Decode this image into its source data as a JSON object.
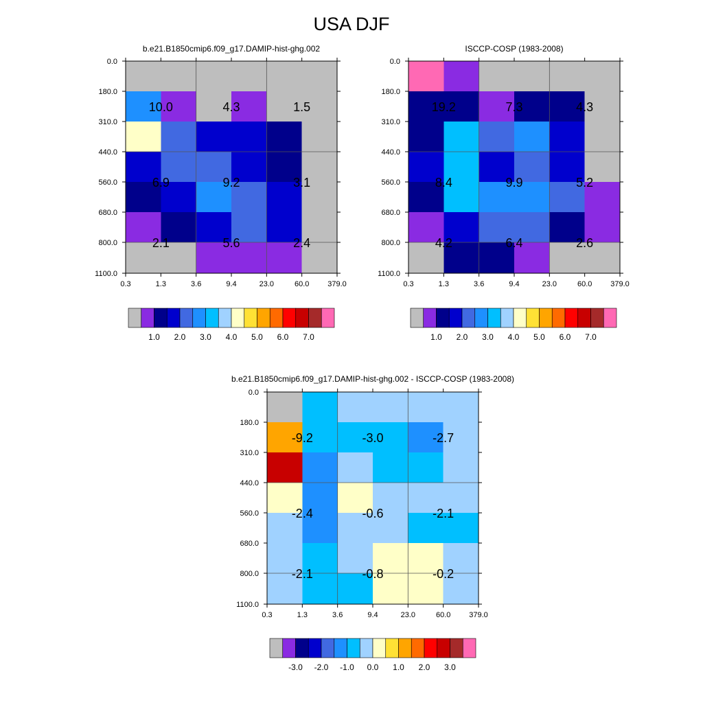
{
  "title": "USA DJF",
  "chart_data": [
    {
      "type": "heatmap",
      "title": "b.e21.B1850cmip6.f09_g17.DAMIP-hist-ghg.002",
      "x_tick_labels": [
        "0.3",
        "1.3",
        "3.6",
        "9.4",
        "23.0",
        "60.0",
        "379.0"
      ],
      "y_tick_labels": [
        "0.0",
        "180.0",
        "310.0",
        "440.0",
        "560.0",
        "680.0",
        "800.0",
        "1100.0"
      ],
      "cell_colors": [
        [
          "#bebebe",
          "#bebebe",
          "#bebebe",
          "#bebebe",
          "#bebebe",
          "#bebebe"
        ],
        [
          "#1e90ff",
          "#8a2be2",
          "#bebebe",
          "#8a2be2",
          "#bebebe",
          "#bebebe"
        ],
        [
          "#ffffc8",
          "#4169e1",
          "#0000cd",
          "#0000cd",
          "#00008b",
          "#bebebe"
        ],
        [
          "#0000cd",
          "#4169e1",
          "#4169e1",
          "#0000cd",
          "#00008b",
          "#bebebe"
        ],
        [
          "#00008b",
          "#0000cd",
          "#1e90ff",
          "#4169e1",
          "#0000cd",
          "#bebebe"
        ],
        [
          "#8a2be2",
          "#00008b",
          "#0000cd",
          "#4169e1",
          "#0000cd",
          "#bebebe"
        ],
        [
          "#bebebe",
          "#bebebe",
          "#8a2be2",
          "#8a2be2",
          "#8a2be2",
          "#bebebe"
        ]
      ],
      "annotations": [
        {
          "value": "10.0",
          "col": 0.5,
          "row": 1.5
        },
        {
          "value": "4.3",
          "col": 2.5,
          "row": 1.5
        },
        {
          "value": "1.5",
          "col": 4.5,
          "row": 1.5
        },
        {
          "value": "6.9",
          "col": 0.5,
          "row": 4.0
        },
        {
          "value": "9.2",
          "col": 2.5,
          "row": 4.0
        },
        {
          "value": "3.1",
          "col": 4.5,
          "row": 4.0
        },
        {
          "value": "2.1",
          "col": 0.5,
          "row": 6.0
        },
        {
          "value": "5.6",
          "col": 2.5,
          "row": 6.0
        },
        {
          "value": "2.4",
          "col": 4.5,
          "row": 6.0
        }
      ],
      "colorbar": {
        "colors": [
          "#bebebe",
          "#8a2be2",
          "#00008b",
          "#0000cd",
          "#4169e1",
          "#1e90ff",
          "#00bfff",
          "#a0d2ff",
          "#ffffc8",
          "#ffe135",
          "#ffa500",
          "#ff6a00",
          "#ff0000",
          "#c80000",
          "#a52a2a",
          "#ff69b4"
        ],
        "labels": [
          "1.0",
          "2.0",
          "3.0",
          "4.0",
          "5.0",
          "6.0",
          "7.0"
        ],
        "label_first_boundary": 2
      }
    },
    {
      "type": "heatmap",
      "title": "ISCCP-COSP (1983-2008)",
      "x_tick_labels": [
        "0.3",
        "1.3",
        "3.6",
        "9.4",
        "23.0",
        "60.0",
        "379.0"
      ],
      "y_tick_labels": [
        "0.0",
        "180.0",
        "310.0",
        "440.0",
        "560.0",
        "680.0",
        "800.0",
        "1100.0"
      ],
      "cell_colors": [
        [
          "#ff69b4",
          "#8a2be2",
          "#bebebe",
          "#bebebe",
          "#bebebe",
          "#bebebe"
        ],
        [
          "#00008b",
          "#00008b",
          "#8a2be2",
          "#00008b",
          "#00008b",
          "#bebebe"
        ],
        [
          "#00008b",
          "#00bfff",
          "#4169e1",
          "#1e90ff",
          "#0000cd",
          "#bebebe"
        ],
        [
          "#0000cd",
          "#00bfff",
          "#0000cd",
          "#4169e1",
          "#0000cd",
          "#bebebe"
        ],
        [
          "#00008b",
          "#00bfff",
          "#1e90ff",
          "#1e90ff",
          "#4169e1",
          "#8a2be2"
        ],
        [
          "#8a2be2",
          "#0000cd",
          "#4169e1",
          "#4169e1",
          "#00008b",
          "#8a2be2"
        ],
        [
          "#bebebe",
          "#00008b",
          "#00008b",
          "#8a2be2",
          "#bebebe",
          "#bebebe"
        ]
      ],
      "annotations": [
        {
          "value": "19.2",
          "col": 0.5,
          "row": 1.5
        },
        {
          "value": "7.3",
          "col": 2.5,
          "row": 1.5
        },
        {
          "value": "4.3",
          "col": 4.5,
          "row": 1.5
        },
        {
          "value": "8.4",
          "col": 0.5,
          "row": 4.0
        },
        {
          "value": "9.9",
          "col": 2.5,
          "row": 4.0
        },
        {
          "value": "5.2",
          "col": 4.5,
          "row": 4.0
        },
        {
          "value": "4.2",
          "col": 0.5,
          "row": 6.0
        },
        {
          "value": "6.4",
          "col": 2.5,
          "row": 6.0
        },
        {
          "value": "2.6",
          "col": 4.5,
          "row": 6.0
        }
      ],
      "colorbar": {
        "colors": [
          "#bebebe",
          "#8a2be2",
          "#00008b",
          "#0000cd",
          "#4169e1",
          "#1e90ff",
          "#00bfff",
          "#a0d2ff",
          "#ffffc8",
          "#ffe135",
          "#ffa500",
          "#ff6a00",
          "#ff0000",
          "#c80000",
          "#a52a2a",
          "#ff69b4"
        ],
        "labels": [
          "1.0",
          "2.0",
          "3.0",
          "4.0",
          "5.0",
          "6.0",
          "7.0"
        ],
        "label_first_boundary": 2
      }
    },
    {
      "type": "heatmap",
      "title": "b.e21.B1850cmip6.f09_g17.DAMIP-hist-ghg.002 - ISCCP-COSP (1983-2008)",
      "x_tick_labels": [
        "0.3",
        "1.3",
        "3.6",
        "9.4",
        "23.0",
        "60.0",
        "379.0"
      ],
      "y_tick_labels": [
        "0.0",
        "180.0",
        "310.0",
        "440.0",
        "560.0",
        "680.0",
        "800.0",
        "1100.0"
      ],
      "cell_colors": [
        [
          "#bebebe",
          "#00bfff",
          "#a0d2ff",
          "#a0d2ff",
          "#a0d2ff",
          "#a0d2ff"
        ],
        [
          "#ffa500",
          "#00bfff",
          "#00bfff",
          "#00bfff",
          "#1e90ff",
          "#a0d2ff"
        ],
        [
          "#c80000",
          "#1e90ff",
          "#a0d2ff",
          "#00bfff",
          "#00bfff",
          "#a0d2ff"
        ],
        [
          "#ffffc8",
          "#1e90ff",
          "#ffffc8",
          "#a0d2ff",
          "#a0d2ff",
          "#a0d2ff"
        ],
        [
          "#a0d2ff",
          "#1e90ff",
          "#a0d2ff",
          "#a0d2ff",
          "#00bfff",
          "#00bfff"
        ],
        [
          "#a0d2ff",
          "#00bfff",
          "#a0d2ff",
          "#ffffc8",
          "#ffffc8",
          "#a0d2ff"
        ],
        [
          "#a0d2ff",
          "#00bfff",
          "#00bfff",
          "#ffffc8",
          "#ffffc8",
          "#a0d2ff"
        ]
      ],
      "annotations": [
        {
          "value": "-9.2",
          "col": 0.5,
          "row": 1.5
        },
        {
          "value": "-3.0",
          "col": 2.5,
          "row": 1.5
        },
        {
          "value": "-2.7",
          "col": 4.5,
          "row": 1.5
        },
        {
          "value": "-2.4",
          "col": 0.5,
          "row": 4.0
        },
        {
          "value": "-0.6",
          "col": 2.5,
          "row": 4.0
        },
        {
          "value": "-2.1",
          "col": 4.5,
          "row": 4.0
        },
        {
          "value": "-2.1",
          "col": 0.5,
          "row": 6.0
        },
        {
          "value": "-0.8",
          "col": 2.5,
          "row": 6.0
        },
        {
          "value": "-0.2",
          "col": 4.5,
          "row": 6.0
        }
      ],
      "colorbar": {
        "colors": [
          "#bebebe",
          "#8a2be2",
          "#00008b",
          "#0000cd",
          "#4169e1",
          "#1e90ff",
          "#00bfff",
          "#a0d2ff",
          "#ffffc8",
          "#ffe135",
          "#ffa500",
          "#ff6a00",
          "#ff0000",
          "#c80000",
          "#a52a2a",
          "#ff69b4"
        ],
        "labels": [
          "-3.0",
          "-2.0",
          "-1.0",
          "0.0",
          "1.0",
          "2.0",
          "3.0"
        ],
        "label_first_boundary": 2
      }
    }
  ]
}
